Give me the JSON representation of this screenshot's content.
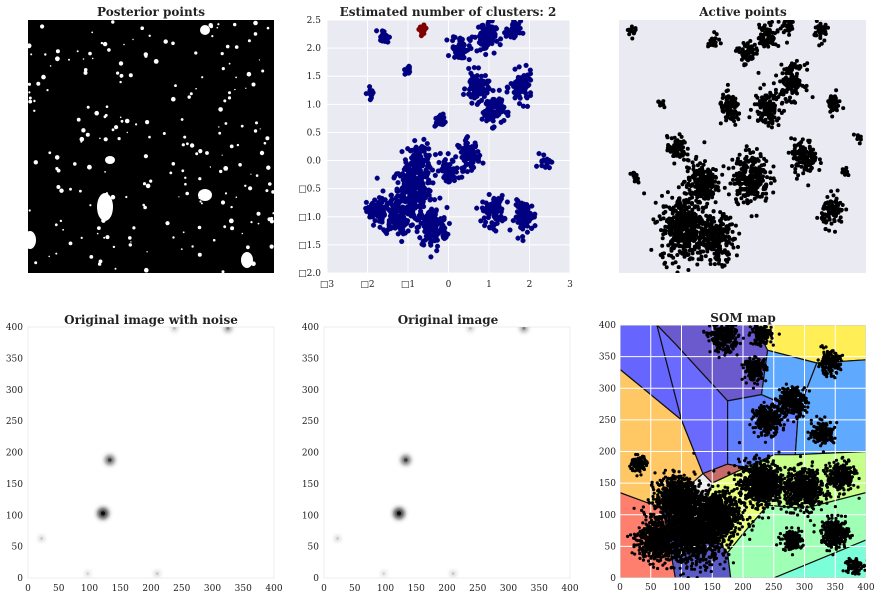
{
  "chart_data": [
    {
      "type": "image",
      "title": "Posterior points",
      "axes_visible": false,
      "description_colors": {
        "foreground": "#000000",
        "holes": "#ffffff"
      }
    },
    {
      "type": "scatter",
      "title": "Estimated number of clusters: 2",
      "xlim": [
        -3,
        3
      ],
      "ylim": [
        -2.0,
        2.5
      ],
      "xticks": [
        -3,
        -2,
        -1,
        0,
        1,
        2,
        3
      ],
      "xtick_labels": [
        "□3",
        "□2",
        "□1",
        "0",
        "1",
        "2",
        "3"
      ],
      "yticks": [
        -2.0,
        -1.5,
        -1.0,
        -0.5,
        0.0,
        0.5,
        1.0,
        1.5,
        2.0,
        2.5
      ],
      "ytick_labels": [
        "□2.0",
        "□1.5",
        "□1.0",
        "□0.5",
        "0.0",
        "0.5",
        "1.0",
        "1.5",
        "2.0",
        "2.5"
      ],
      "grid": true,
      "background": "#eaeaf2",
      "series": [
        {
          "color": "#000080",
          "blobs": [
            {
              "cx": -0.9,
              "cy": -0.6,
              "r": 0.55
            },
            {
              "cx": -0.7,
              "cy": 0.0,
              "r": 0.35
            },
            {
              "cx": -0.4,
              "cy": -1.2,
              "r": 0.4
            },
            {
              "cx": -1.3,
              "cy": -1.0,
              "r": 0.35
            },
            {
              "cx": -1.8,
              "cy": -0.9,
              "r": 0.25
            },
            {
              "cx": 0.0,
              "cy": -0.2,
              "r": 0.25
            },
            {
              "cx": 1.1,
              "cy": -0.9,
              "r": 0.3
            },
            {
              "cx": 1.9,
              "cy": -1.0,
              "r": 0.3
            },
            {
              "cx": 0.5,
              "cy": 0.1,
              "r": 0.3
            },
            {
              "cx": 1.1,
              "cy": 0.9,
              "r": 0.3
            },
            {
              "cx": 1.8,
              "cy": 1.3,
              "r": 0.3
            },
            {
              "cx": 0.7,
              "cy": 1.3,
              "r": 0.3
            },
            {
              "cx": 0.3,
              "cy": 2.0,
              "r": 0.25
            },
            {
              "cx": 0.9,
              "cy": 2.2,
              "r": 0.3
            },
            {
              "cx": 1.6,
              "cy": 2.3,
              "r": 0.2
            },
            {
              "cx": -1.6,
              "cy": 2.2,
              "r": 0.15
            },
            {
              "cx": -1.0,
              "cy": 1.6,
              "r": 0.1
            },
            {
              "cx": -1.9,
              "cy": 1.2,
              "r": 0.12
            },
            {
              "cx": 2.4,
              "cy": 0.0,
              "r": 0.15
            },
            {
              "cx": -0.2,
              "cy": 0.7,
              "r": 0.15
            }
          ]
        },
        {
          "color": "#800000",
          "blobs": [
            {
              "cx": -0.65,
              "cy": 2.35,
              "r": 0.12
            }
          ]
        }
      ]
    },
    {
      "type": "image",
      "title": "Active points",
      "axes_visible": false,
      "background": "#eaeaf2",
      "point_color": "#000000"
    },
    {
      "type": "heatmap",
      "title": "Original image with noise",
      "xlim": [
        0,
        400
      ],
      "ylim": [
        0,
        400
      ],
      "xticks": [
        0,
        50,
        100,
        150,
        200,
        250,
        300,
        350,
        400
      ],
      "yticks": [
        0,
        50,
        100,
        150,
        200,
        250,
        300,
        350,
        400
      ],
      "peaks": [
        {
          "x": 122,
          "y": 103,
          "intensity": 0.95
        },
        {
          "x": 133,
          "y": 188,
          "intensity": 0.75
        },
        {
          "x": 325,
          "y": 398,
          "intensity": 0.5
        },
        {
          "x": 238,
          "y": 398,
          "intensity": 0.3
        },
        {
          "x": 22,
          "y": 63,
          "intensity": 0.25
        },
        {
          "x": 210,
          "y": 7,
          "intensity": 0.25
        },
        {
          "x": 97,
          "y": 7,
          "intensity": 0.2
        }
      ]
    },
    {
      "type": "heatmap",
      "title": "Original image",
      "xlim": [
        0,
        400
      ],
      "ylim": [
        0,
        400
      ],
      "xticks": [
        0,
        50,
        100,
        150,
        200,
        250,
        300,
        350,
        400
      ],
      "yticks": [
        0,
        50,
        100,
        150,
        200,
        250,
        300,
        350,
        400
      ],
      "peaks": [
        {
          "x": 122,
          "y": 103,
          "intensity": 0.95
        },
        {
          "x": 133,
          "y": 188,
          "intensity": 0.75
        },
        {
          "x": 325,
          "y": 398,
          "intensity": 0.5
        },
        {
          "x": 238,
          "y": 398,
          "intensity": 0.3
        },
        {
          "x": 22,
          "y": 63,
          "intensity": 0.25
        },
        {
          "x": 210,
          "y": 7,
          "intensity": 0.25
        },
        {
          "x": 97,
          "y": 7,
          "intensity": 0.2
        }
      ]
    },
    {
      "type": "voronoi",
      "title": "SOM map",
      "xlim": [
        0,
        400
      ],
      "ylim": [
        0,
        400
      ],
      "xticks": [
        0,
        50,
        100,
        150,
        200,
        250,
        300,
        350,
        400
      ],
      "yticks": [
        0,
        50,
        100,
        150,
        200,
        250,
        300,
        350,
        400
      ],
      "grid": true,
      "regions": [
        {
          "color": "#ff7f6e",
          "points": [
            [
              0,
              0
            ],
            [
              0,
              135
            ],
            [
              70,
              110
            ],
            [
              90,
              0
            ]
          ]
        },
        {
          "color": "#5b5bc8",
          "points": [
            [
              90,
              0
            ],
            [
              70,
              110
            ],
            [
              130,
              90
            ],
            [
              175,
              40
            ],
            [
              180,
              0
            ]
          ]
        },
        {
          "color": "#ffc865",
          "points": [
            [
              0,
              135
            ],
            [
              70,
              110
            ],
            [
              135,
              165
            ],
            [
              100,
              250
            ],
            [
              0,
              330
            ]
          ]
        },
        {
          "color": "#6666ff",
          "points": [
            [
              0,
              330
            ],
            [
              0,
              400
            ],
            [
              60,
              400
            ],
            [
              100,
              250
            ]
          ]
        },
        {
          "color": "#6a5acd",
          "points": [
            [
              60,
              400
            ],
            [
              90,
              370
            ],
            [
              175,
              280
            ],
            [
              230,
              290
            ],
            [
              240,
              360
            ],
            [
              220,
              400
            ]
          ]
        },
        {
          "color": "#6a6aff",
          "points": [
            [
              60,
              400
            ],
            [
              100,
              250
            ],
            [
              135,
              165
            ],
            [
              175,
              180
            ],
            [
              175,
              280
            ],
            [
              90,
              370
            ]
          ]
        },
        {
          "color": "#c86a6a",
          "points": [
            [
              135,
              165
            ],
            [
              150,
              150
            ],
            [
              205,
              175
            ],
            [
              175,
              180
            ]
          ]
        },
        {
          "color": "#5f7fff",
          "points": [
            [
              175,
              180
            ],
            [
              205,
              175
            ],
            [
              285,
              195
            ],
            [
              290,
              265
            ],
            [
              230,
              290
            ],
            [
              175,
              280
            ]
          ]
        },
        {
          "color": "#ffee55",
          "points": [
            [
              220,
              400
            ],
            [
              240,
              360
            ],
            [
              320,
              340
            ],
            [
              400,
              345
            ],
            [
              400,
              400
            ]
          ]
        },
        {
          "color": "#5fa8ff",
          "points": [
            [
              230,
              290
            ],
            [
              290,
              265
            ],
            [
              320,
              340
            ],
            [
              240,
              360
            ]
          ]
        },
        {
          "color": "#5faaff",
          "points": [
            [
              285,
              195
            ],
            [
              400,
              200
            ],
            [
              400,
              345
            ],
            [
              320,
              340
            ],
            [
              290,
              265
            ]
          ]
        },
        {
          "color": "#c6ff8a",
          "points": [
            [
              205,
              175
            ],
            [
              250,
              195
            ],
            [
              285,
              195
            ],
            [
              400,
              200
            ],
            [
              400,
              135
            ],
            [
              300,
              110
            ],
            [
              240,
              115
            ]
          ]
        },
        {
          "color": "#e8ff7a",
          "points": [
            [
              150,
              150
            ],
            [
              205,
              175
            ],
            [
              240,
              115
            ],
            [
              200,
              70
            ],
            [
              175,
              40
            ],
            [
              130,
              90
            ]
          ]
        },
        {
          "color": "#9fffb5",
          "points": [
            [
              175,
              40
            ],
            [
              200,
              70
            ],
            [
              240,
              115
            ],
            [
              300,
              110
            ],
            [
              400,
              135
            ],
            [
              400,
              60
            ],
            [
              250,
              0
            ],
            [
              180,
              0
            ]
          ]
        },
        {
          "color": "#7affd8",
          "points": [
            [
              250,
              0
            ],
            [
              400,
              60
            ],
            [
              400,
              0
            ]
          ]
        }
      ]
    }
  ]
}
